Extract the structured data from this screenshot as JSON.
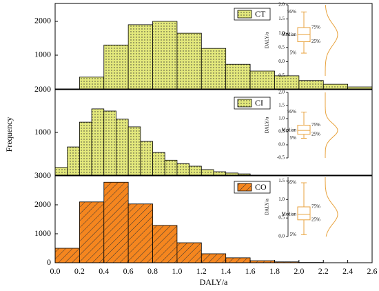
{
  "chart_data": [
    {
      "type": "histogram",
      "ylabel": "Frequency",
      "bins": [
        0.2,
        0.4,
        0.6,
        0.8,
        1.0,
        1.2,
        1.4,
        1.6,
        1.8,
        2.0,
        2.2,
        2.4,
        2.6
      ],
      "series": [
        {
          "name": "CT",
          "color": "#e3e87c",
          "pattern": "dots",
          "values": [
            350,
            1300,
            1900,
            2000,
            1650,
            1200,
            730,
            530,
            390,
            250,
            140,
            60
          ]
        }
      ],
      "xlim": [
        0,
        2.6
      ],
      "ylim": [
        0,
        2530
      ],
      "yticks": [
        1000,
        2000
      ],
      "inset": {
        "type": "box",
        "ylabel": "DALY/a",
        "ylim": [
          -0.5,
          2.0
        ],
        "yticks": [
          -0.5,
          {
            "value": 0,
            "label": "0.0"
          },
          {
            "value": 0.5,
            "label": "0.5"
          },
          {
            "value": 1,
            "label": "1.0"
          },
          {
            "value": 1.5,
            "label": "1.5"
          },
          {
            "value": 2,
            "label": "2.0"
          }
        ],
        "box": {
          "p5": 0.3,
          "q1": 0.7,
          "median": 0.95,
          "q3": 1.2,
          "p95": 1.75
        },
        "labels": {
          "p95": "95%",
          "q3": "75%",
          "median": "Median",
          "q1": "25%",
          "p5": "5%"
        }
      }
    },
    {
      "type": "histogram",
      "bins": [
        0.0,
        0.1,
        0.2,
        0.3,
        0.4,
        0.5,
        0.6,
        0.7,
        0.8,
        0.9,
        1.0,
        1.1,
        1.2,
        1.3,
        1.4,
        1.5,
        1.6
      ],
      "series": [
        {
          "name": "CI",
          "color": "#e3e87c",
          "pattern": "dots",
          "values": [
            180,
            660,
            1240,
            1550,
            1500,
            1310,
            1130,
            790,
            530,
            350,
            270,
            210,
            130,
            80,
            50,
            30
          ]
        }
      ],
      "xlim": [
        0,
        2.6
      ],
      "ylim": [
        0,
        2000
      ],
      "yticks": [
        1000,
        2000
      ],
      "inset": {
        "type": "box",
        "ylabel": "DALY/a",
        "ylim": [
          -0.5,
          2.0
        ],
        "yticks": [
          -0.5,
          {
            "value": 0,
            "label": "0.0"
          },
          {
            "value": 0.5,
            "label": "0.5"
          },
          {
            "value": 1,
            "label": "1.0"
          },
          {
            "value": 1.5,
            "label": "1.5"
          },
          {
            "value": 2,
            "label": "2.0"
          }
        ],
        "box": {
          "p5": 0.25,
          "q1": 0.4,
          "median": 0.55,
          "q3": 0.75,
          "p95": 1.25
        },
        "labels": {
          "p95": "95%",
          "q3": "75%",
          "median": "Median",
          "q1": "25%",
          "p5": "5%"
        }
      }
    },
    {
      "type": "histogram",
      "xlabel": "DALY/a",
      "bins": [
        0.0,
        0.2,
        0.4,
        0.6,
        0.8,
        1.0,
        1.2,
        1.4,
        1.6,
        1.8,
        2.0,
        2.2
      ],
      "series": [
        {
          "name": "CO",
          "color": "#f5861f",
          "pattern": "hatch",
          "values": [
            500,
            2100,
            2780,
            2030,
            1290,
            690,
            310,
            170,
            70,
            30,
            10
          ]
        }
      ],
      "xlim": [
        0,
        2.6
      ],
      "ylim": [
        0,
        3000
      ],
      "yticks": [
        0,
        1000,
        2000,
        3000
      ],
      "xticks": [
        {
          "value": 0,
          "label": "0.0"
        },
        {
          "value": 0.2,
          "label": "0.2"
        },
        {
          "value": 0.4,
          "label": "0.4"
        },
        {
          "value": 0.6,
          "label": "0.6"
        },
        {
          "value": 0.8,
          "label": "0.8"
        },
        {
          "value": 1.0,
          "label": "1.0"
        },
        {
          "value": 1.2,
          "label": "1.2"
        },
        {
          "value": 1.4,
          "label": "1.4"
        },
        {
          "value": 1.6,
          "label": "1.6"
        },
        {
          "value": 1.8,
          "label": "1.8"
        },
        {
          "value": 2.0,
          "label": "2.0"
        },
        {
          "value": 2.2,
          "label": "2.2"
        },
        {
          "value": 2.4,
          "label": "2.4"
        },
        {
          "value": 2.6,
          "label": "2.6"
        }
      ],
      "inset": {
        "type": "box",
        "ylabel": "DALY/a",
        "ylim": [
          0,
          1.6
        ],
        "yticks": [
          {
            "value": 0,
            "label": "0.0"
          },
          {
            "value": 0.5,
            "label": "0.5"
          },
          {
            "value": 1,
            "label": "1.0"
          },
          {
            "value": 1.5,
            "label": "1.5"
          }
        ],
        "box": {
          "p5": 0.05,
          "q1": 0.45,
          "median": 0.6,
          "q3": 0.8,
          "p95": 1.45
        },
        "labels": {
          "p95": "95%",
          "q3": "75%",
          "median": "Median",
          "q1": "25%",
          "p5": "5%"
        }
      }
    }
  ]
}
